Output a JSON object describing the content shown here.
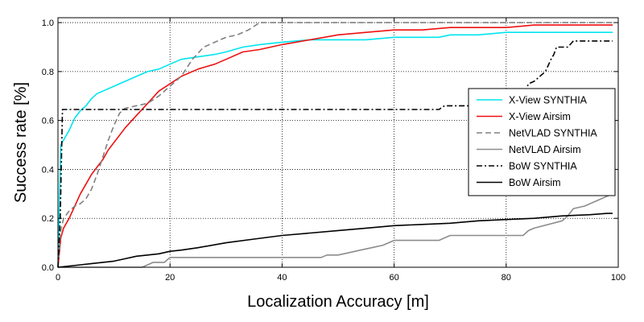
{
  "chart_data": {
    "type": "line",
    "title": "",
    "xlabel": "Localization Accuracy [m]",
    "ylabel": "Success rate [%]",
    "xlim": [
      0,
      100
    ],
    "ylim": [
      0,
      1.02
    ],
    "xticks": [
      0,
      20,
      40,
      60,
      80,
      100
    ],
    "yticks": [
      0.0,
      0.2,
      0.4,
      0.6,
      0.8,
      1.0
    ],
    "x_tick_labels": [
      "0",
      "20",
      "40",
      "60",
      "80",
      "100"
    ],
    "y_tick_labels": [
      "0.0",
      "0.2",
      "0.4",
      "0.6",
      "0.8",
      "1.0"
    ],
    "grid": true,
    "legend_position": "center-right",
    "series": [
      {
        "name": "X-View SYNTHIA",
        "color": "#00e5ee",
        "dash": "solid",
        "x": [
          0,
          0.5,
          1,
          2,
          3,
          4,
          5,
          6,
          7,
          8,
          10,
          12,
          14,
          16,
          18,
          20,
          22,
          25,
          28,
          30,
          33,
          36,
          40,
          45,
          50,
          55,
          60,
          65,
          68,
          70,
          75,
          80,
          85,
          90,
          95,
          99
        ],
        "y": [
          0,
          0.5,
          0.52,
          0.56,
          0.61,
          0.64,
          0.66,
          0.69,
          0.71,
          0.72,
          0.74,
          0.76,
          0.78,
          0.8,
          0.81,
          0.83,
          0.85,
          0.86,
          0.87,
          0.88,
          0.9,
          0.91,
          0.92,
          0.93,
          0.93,
          0.93,
          0.94,
          0.94,
          0.94,
          0.95,
          0.95,
          0.96,
          0.96,
          0.96,
          0.96,
          0.96
        ]
      },
      {
        "name": "X-View Airsim",
        "color": "#ee1111",
        "dash": "solid",
        "x": [
          0,
          0.5,
          1,
          2,
          3,
          4,
          5,
          6,
          7,
          8,
          9,
          10,
          12,
          14,
          16,
          18,
          20,
          22,
          25,
          28,
          30,
          33,
          36,
          40,
          45,
          50,
          55,
          60,
          65,
          70,
          75,
          80,
          85,
          90,
          95,
          99
        ],
        "y": [
          0,
          0.12,
          0.16,
          0.2,
          0.25,
          0.3,
          0.34,
          0.38,
          0.41,
          0.44,
          0.48,
          0.51,
          0.57,
          0.62,
          0.67,
          0.72,
          0.75,
          0.78,
          0.81,
          0.83,
          0.85,
          0.88,
          0.89,
          0.91,
          0.93,
          0.95,
          0.96,
          0.97,
          0.97,
          0.98,
          0.98,
          0.98,
          0.99,
          0.99,
          0.99,
          0.99
        ]
      },
      {
        "name": "NetVLAD SYNTHIA",
        "color": "#808080",
        "dash": "dashed",
        "x": [
          0,
          0.5,
          1,
          2,
          3,
          4,
          5,
          6,
          7,
          8,
          9,
          10,
          11,
          12,
          14,
          16,
          18,
          20,
          22,
          24,
          26,
          28,
          30,
          32,
          34,
          36,
          40,
          50,
          60,
          70,
          80,
          90,
          99
        ],
        "y": [
          0,
          0.15,
          0.2,
          0.23,
          0.25,
          0.26,
          0.28,
          0.32,
          0.38,
          0.45,
          0.52,
          0.58,
          0.63,
          0.65,
          0.66,
          0.67,
          0.7,
          0.74,
          0.78,
          0.85,
          0.9,
          0.92,
          0.94,
          0.95,
          0.97,
          1.0,
          1.0,
          1.0,
          1.0,
          1.0,
          1.0,
          1.0,
          1.0
        ]
      },
      {
        "name": "NetVLAD Airsim",
        "color": "#8c8c8c",
        "dash": "solid",
        "x": [
          0,
          15,
          16,
          17,
          18,
          19,
          20,
          25,
          30,
          35,
          40,
          45,
          47,
          48,
          50,
          52,
          54,
          56,
          58,
          60,
          65,
          68,
          69,
          70,
          75,
          80,
          83,
          84,
          85,
          90,
          91,
          92,
          94,
          96,
          99
        ],
        "y": [
          0,
          0,
          0.01,
          0.02,
          0.02,
          0.02,
          0.04,
          0.04,
          0.04,
          0.04,
          0.04,
          0.04,
          0.04,
          0.05,
          0.05,
          0.06,
          0.07,
          0.08,
          0.09,
          0.11,
          0.11,
          0.11,
          0.12,
          0.13,
          0.13,
          0.13,
          0.13,
          0.15,
          0.16,
          0.19,
          0.21,
          0.24,
          0.25,
          0.27,
          0.3
        ]
      },
      {
        "name": "BoW SYNTHIA",
        "color": "#000000",
        "dash": "dashdot",
        "x": [
          0,
          0.4,
          0.8,
          5,
          20,
          40,
          60,
          65,
          68,
          69,
          70,
          75,
          80,
          82,
          83,
          84,
          85,
          86,
          87,
          88,
          88.5,
          89,
          90,
          91,
          92,
          95,
          99
        ],
        "y": [
          0,
          0.2,
          0.645,
          0.645,
          0.645,
          0.645,
          0.645,
          0.645,
          0.645,
          0.66,
          0.66,
          0.66,
          0.66,
          0.66,
          0.7,
          0.75,
          0.76,
          0.78,
          0.8,
          0.85,
          0.87,
          0.9,
          0.9,
          0.9,
          0.925,
          0.925,
          0.925
        ]
      },
      {
        "name": "BoW Airsim",
        "color": "#000000",
        "dash": "solid",
        "x": [
          0,
          2,
          4,
          6,
          8,
          10,
          12,
          14,
          16,
          18,
          20,
          22,
          25,
          30,
          35,
          40,
          45,
          50,
          55,
          60,
          65,
          70,
          75,
          80,
          85,
          90,
          95,
          98,
          99
        ],
        "y": [
          0,
          0.005,
          0.01,
          0.015,
          0.02,
          0.025,
          0.035,
          0.045,
          0.05,
          0.055,
          0.065,
          0.07,
          0.08,
          0.1,
          0.115,
          0.13,
          0.14,
          0.15,
          0.16,
          0.17,
          0.175,
          0.18,
          0.19,
          0.195,
          0.2,
          0.21,
          0.215,
          0.22,
          0.22
        ]
      }
    ]
  }
}
